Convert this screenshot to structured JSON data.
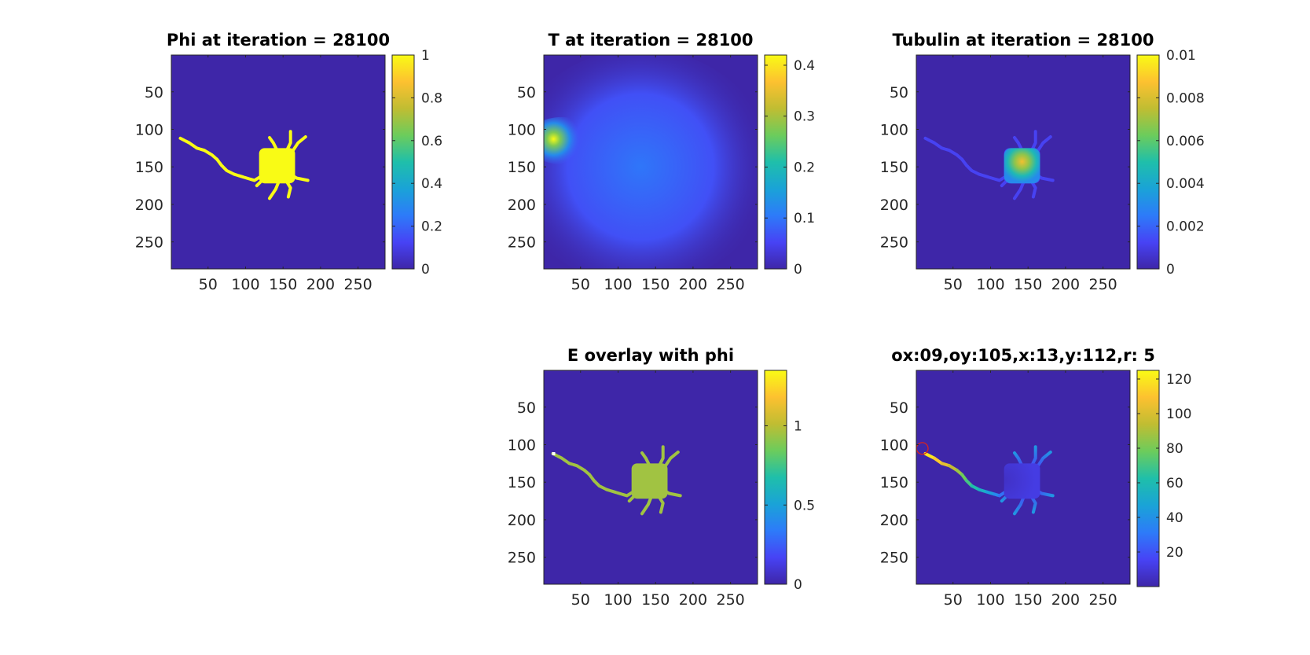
{
  "figure": {
    "background": "#ffffff",
    "colormap": "parula",
    "colormap_stops": [
      "#3e26a8",
      "#4743f5",
      "#2d7bf9",
      "#1aa3d7",
      "#1fbfaa",
      "#6ccc5c",
      "#c0bd32",
      "#fdc130",
      "#f9fb15"
    ]
  },
  "chart_data": [
    {
      "type": "heatmap",
      "title": "Phi at iteration = 28100",
      "field": "phi",
      "xlim": [
        1,
        286
      ],
      "ylim": [
        1,
        286
      ],
      "xticks": [
        "50",
        "100",
        "150",
        "200",
        "250"
      ],
      "yticks": [
        "50",
        "100",
        "150",
        "200",
        "250"
      ],
      "clim": [
        0,
        1
      ],
      "colorbar_ticks": [
        {
          "value": 0,
          "label": "0"
        },
        {
          "value": 0.2,
          "label": "0.2"
        },
        {
          "value": 0.4,
          "label": "0.4"
        },
        {
          "value": 0.6,
          "label": "0.6"
        },
        {
          "value": 0.8,
          "label": "0.8"
        },
        {
          "value": 1,
          "label": "1"
        }
      ],
      "background_value": 0,
      "cell_value": 1
    },
    {
      "type": "heatmap",
      "title": "T at iteration = 28100",
      "field": "T",
      "xlim": [
        1,
        286
      ],
      "ylim": [
        1,
        286
      ],
      "xticks": [
        "50",
        "100",
        "150",
        "200",
        "250"
      ],
      "yticks": [
        "50",
        "100",
        "150",
        "200",
        "250"
      ],
      "clim": [
        0,
        0.42
      ],
      "colorbar_ticks": [
        {
          "value": 0,
          "label": "0"
        },
        {
          "value": 0.1,
          "label": "0.1"
        },
        {
          "value": 0.2,
          "label": "0.2"
        },
        {
          "value": 0.3,
          "label": "0.3"
        },
        {
          "value": 0.4,
          "label": "0.4"
        }
      ],
      "peak": {
        "x": 14,
        "y": 113,
        "value": 0.42
      },
      "diffuse_center": {
        "x": 130,
        "y": 150,
        "value": 0.1
      }
    },
    {
      "type": "heatmap",
      "title": "Tubulin at iteration = 28100",
      "field": "tubulin",
      "xlim": [
        1,
        286
      ],
      "ylim": [
        1,
        286
      ],
      "xticks": [
        "50",
        "100",
        "150",
        "200",
        "250"
      ],
      "yticks": [
        "50",
        "100",
        "150",
        "200",
        "250"
      ],
      "clim": [
        0,
        0.01
      ],
      "colorbar_ticks": [
        {
          "value": 0,
          "label": "0"
        },
        {
          "value": 0.002,
          "label": "0.002"
        },
        {
          "value": 0.004,
          "label": "0.004"
        },
        {
          "value": 0.006,
          "label": "0.006"
        },
        {
          "value": 0.008,
          "label": "0.008"
        },
        {
          "value": 0.01,
          "label": "0.01"
        }
      ],
      "peak": {
        "x": 142,
        "y": 143,
        "value": 0.0085
      },
      "neurite_value": 0.0012
    },
    {
      "type": "heatmap",
      "title": "E overlay with phi",
      "field": "E",
      "xlim": [
        1,
        286
      ],
      "ylim": [
        1,
        286
      ],
      "xticks": [
        "50",
        "100",
        "150",
        "200",
        "250"
      ],
      "yticks": [
        "50",
        "100",
        "150",
        "200",
        "250"
      ],
      "clim": [
        0,
        1.35
      ],
      "colorbar_ticks": [
        {
          "value": 0,
          "label": "0"
        },
        {
          "value": 0.5,
          "label": "0.5"
        },
        {
          "value": 1,
          "label": "1"
        }
      ],
      "cell_value": 0.95
    },
    {
      "type": "heatmap",
      "title": "ox:09,oy:105,x:13,y:112,r: 5",
      "field": "distance",
      "xlim": [
        1,
        286
      ],
      "ylim": [
        1,
        286
      ],
      "xticks": [
        "50",
        "100",
        "150",
        "200",
        "250"
      ],
      "yticks": [
        "50",
        "100",
        "150",
        "200",
        "250"
      ],
      "clim": [
        0,
        125
      ],
      "colorbar_ticks": [
        {
          "value": 20,
          "label": "20"
        },
        {
          "value": 40,
          "label": "40"
        },
        {
          "value": 60,
          "label": "60"
        },
        {
          "value": 80,
          "label": "80"
        },
        {
          "value": 100,
          "label": "100"
        },
        {
          "value": 120,
          "label": "120"
        }
      ],
      "soma_value": 12,
      "tip_value": 120,
      "marker": {
        "x": 9,
        "y": 105,
        "r": 5,
        "color": "#d9231f"
      }
    }
  ],
  "neuron": {
    "soma": {
      "x1": 118,
      "y1": 125,
      "x2": 166,
      "y2": 172
    },
    "axon": [
      [
        13,
        112
      ],
      [
        25,
        118
      ],
      [
        35,
        125
      ],
      [
        45,
        128
      ],
      [
        55,
        134
      ],
      [
        62,
        140
      ],
      [
        68,
        148
      ],
      [
        75,
        155
      ],
      [
        85,
        160
      ],
      [
        95,
        163
      ],
      [
        105,
        166
      ],
      [
        112,
        168
      ],
      [
        120,
        163
      ]
    ],
    "dendrites": [
      [
        [
          142,
          128
        ],
        [
          137,
          118
        ],
        [
          132,
          111
        ]
      ],
      [
        [
          155,
          128
        ],
        [
          160,
          118
        ],
        [
          160,
          103
        ]
      ],
      [
        [
          162,
          130
        ],
        [
          170,
          118
        ],
        [
          180,
          110
        ]
      ],
      [
        [
          160,
          160
        ],
        [
          168,
          165
        ],
        [
          183,
          168
        ]
      ],
      [
        [
          152,
          165
        ],
        [
          160,
          178
        ],
        [
          157,
          190
        ]
      ],
      [
        [
          145,
          168
        ],
        [
          140,
          180
        ],
        [
          132,
          192
        ]
      ],
      [
        [
          126,
          162
        ],
        [
          120,
          170
        ],
        [
          115,
          175
        ]
      ]
    ]
  }
}
